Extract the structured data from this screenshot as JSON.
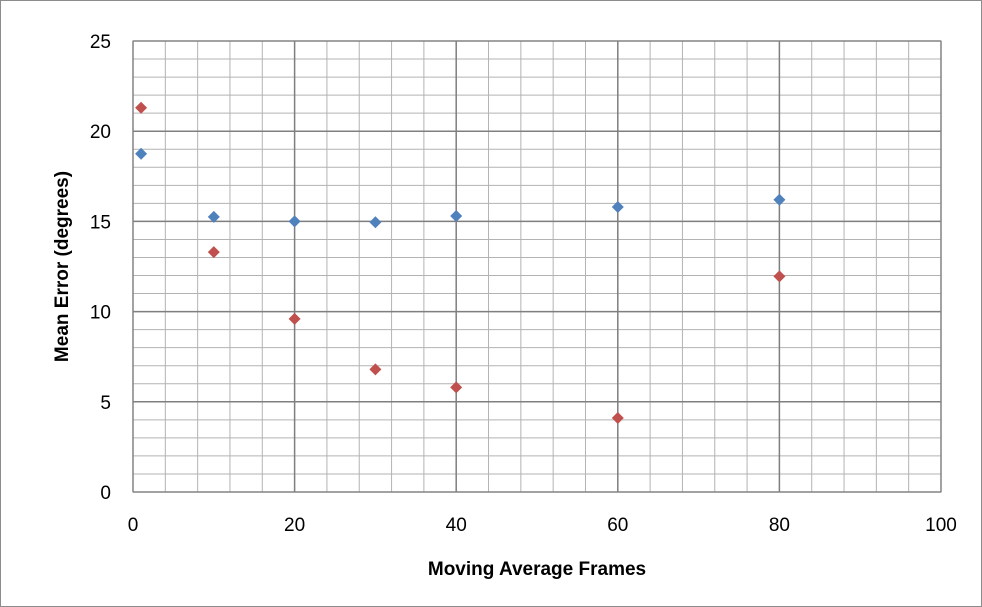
{
  "chart_data": {
    "type": "scatter",
    "title": "",
    "xlabel": "Moving Average Frames",
    "ylabel": "Mean Error (degrees)",
    "xlim": [
      0,
      100
    ],
    "ylim": [
      0,
      25
    ],
    "x_ticks": [
      0,
      20,
      40,
      60,
      80,
      100
    ],
    "y_ticks": [
      0,
      5,
      10,
      15,
      20,
      25
    ],
    "x_tick_labels": [
      "0",
      "20",
      "40",
      "60",
      "80",
      "100"
    ],
    "y_tick_labels": [
      "0",
      "5",
      "10",
      "15",
      "20",
      "25"
    ],
    "grid": true,
    "legend": "none",
    "marker": "diamond",
    "series": [
      {
        "color": "#4f81bd",
        "points": [
          {
            "x": 1,
            "y": 18.75
          },
          {
            "x": 10,
            "y": 15.25
          },
          {
            "x": 20,
            "y": 15.0
          },
          {
            "x": 30,
            "y": 14.95
          },
          {
            "x": 40,
            "y": 15.3
          },
          {
            "x": 60,
            "y": 15.8
          },
          {
            "x": 80,
            "y": 16.2
          }
        ]
      },
      {
        "color": "#c0504d",
        "points": [
          {
            "x": 1,
            "y": 21.3
          },
          {
            "x": 10,
            "y": 13.3
          },
          {
            "x": 20,
            "y": 9.6
          },
          {
            "x": 30,
            "y": 6.8
          },
          {
            "x": 40,
            "y": 5.8
          },
          {
            "x": 60,
            "y": 4.1
          },
          {
            "x": 80,
            "y": 11.95
          }
        ]
      }
    ]
  }
}
